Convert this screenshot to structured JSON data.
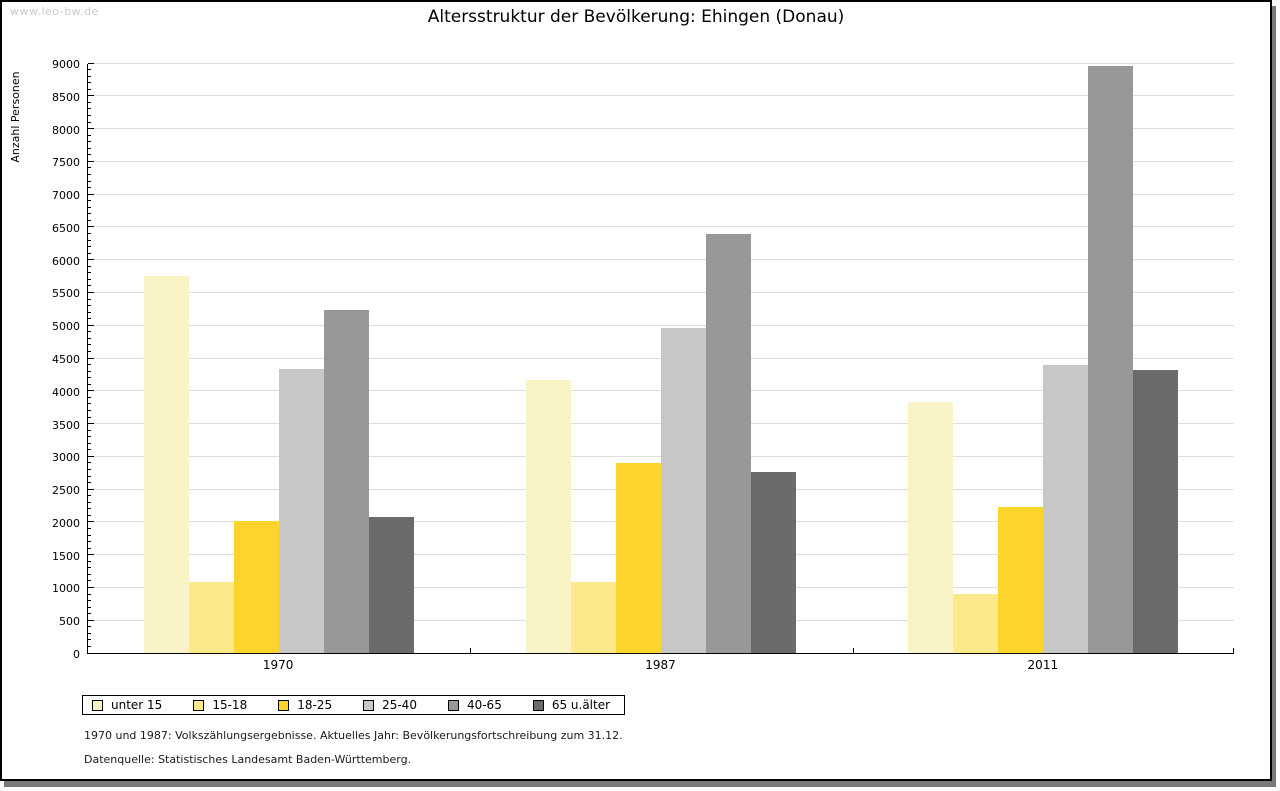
{
  "watermark": "www.leo-bw.de",
  "footer": {
    "line1": "1970 und 1987: Volkszählungsergebnisse. Aktuelles Jahr: Bevölkerungsfortschreibung zum 31.12.",
    "line2": "Datenquelle: Statistisches Landesamt Baden-Württemberg."
  },
  "chart_data": {
    "type": "bar",
    "title": "Altersstruktur der Bevölkerung: Ehingen (Donau)",
    "ylabel": "Anzahl Personen",
    "xlabel": "",
    "categories": [
      "1970",
      "1987",
      "2011"
    ],
    "series": [
      {
        "name": "unter 15",
        "color": "#faf3c5",
        "values": [
          5745,
          4170,
          3830
        ]
      },
      {
        "name": "15-18",
        "color": "#fce98b",
        "values": [
          1085,
          1085,
          905
        ]
      },
      {
        "name": "18-25",
        "color": "#fcd42c",
        "values": [
          2010,
          2905,
          2230
        ]
      },
      {
        "name": "25-40",
        "color": "#c7c7c7",
        "values": [
          4335,
          4950,
          4400
        ]
      },
      {
        "name": "40-65",
        "color": "#989898",
        "values": [
          5230,
          6395,
          8955
        ]
      },
      {
        "name": "65 u.älter",
        "color": "#6b6b6b",
        "values": [
          2075,
          2755,
          4320
        ]
      }
    ],
    "ylim": [
      0,
      9000
    ],
    "ytick_step": 500,
    "minor_tick_step": 100,
    "grid": true,
    "grid_color": "#dedede",
    "axis_color": "#000000",
    "legend_position": "bottom-left"
  }
}
